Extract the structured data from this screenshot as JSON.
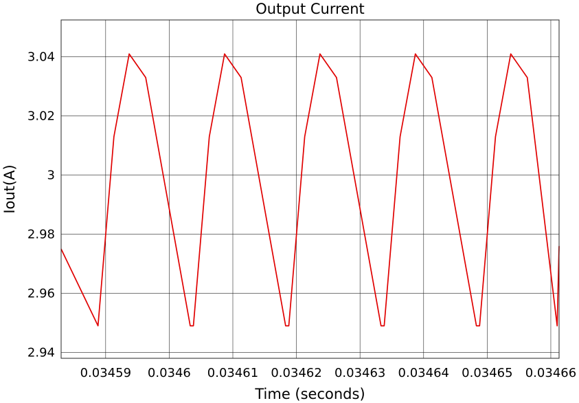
{
  "chart_data": {
    "type": "line",
    "title": "Output Current",
    "xlabel": "Time (seconds)",
    "ylabel": "Iout(A)",
    "xlim": [
      0.034583,
      0.0346613
    ],
    "ylim": [
      2.938,
      3.0525
    ],
    "grid": true,
    "x_ticks": [
      0.03459,
      0.0346,
      0.03461,
      0.03462,
      0.03463,
      0.03464,
      0.03465,
      0.03466
    ],
    "x_tick_labels": [
      "0.03459",
      "0.0346",
      "0.03461",
      "0.03462",
      "0.03463",
      "0.03464",
      "0.03465",
      "0.03466"
    ],
    "y_ticks": [
      2.94,
      2.96,
      2.98,
      3.0,
      3.02,
      3.04
    ],
    "y_tick_labels": [
      "2.94",
      "2.96",
      "2.98",
      "3",
      "3.02",
      "3.04"
    ],
    "series": [
      {
        "color": "#e00000",
        "x": [
          0.034583,
          0.0345888,
          0.0345913,
          0.0345937,
          0.0345963,
          0.0346033,
          0.0346038,
          0.0346063,
          0.0346087,
          0.0346113,
          0.0346183,
          0.0346188,
          0.0346213,
          0.0346237,
          0.0346263,
          0.0346333,
          0.0346338,
          0.0346363,
          0.0346387,
          0.0346413,
          0.0346483,
          0.0346488,
          0.0346513,
          0.0346537,
          0.0346563,
          0.034661,
          0.0346613
        ],
        "y": [
          2.975,
          2.949,
          3.013,
          3.041,
          3.033,
          2.949,
          2.949,
          3.013,
          3.041,
          3.033,
          2.949,
          2.949,
          3.013,
          3.041,
          3.033,
          2.949,
          2.949,
          3.013,
          3.041,
          3.033,
          2.949,
          2.949,
          3.013,
          3.041,
          3.033,
          2.949,
          2.976
        ]
      }
    ]
  }
}
